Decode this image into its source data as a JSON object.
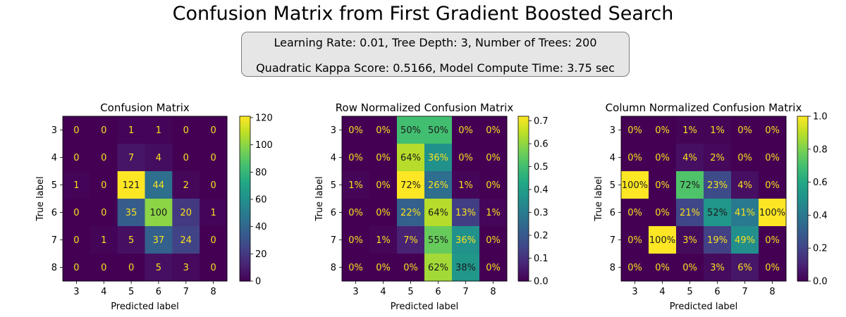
{
  "suptitle": "Confusion Matrix from First Gradient Boosted Search",
  "info_box": {
    "line1": "Learning Rate: 0.01, Tree Depth: 3, Number of Trees: 200",
    "line2": "Quadratic Kappa Score: 0.5166,  Model Compute Time: 3.75 sec"
  },
  "colors": {
    "colormap": "viridis",
    "text_on_dark": "#f9e01e",
    "text_on_light": "#1a1a1a",
    "info_box_bg": "#e6e6e6"
  },
  "chart_data": [
    {
      "type": "heatmap",
      "title": "Confusion Matrix",
      "xlabel": "Predicted label",
      "ylabel": "True label",
      "x": [
        "3",
        "4",
        "5",
        "6",
        "7",
        "8"
      ],
      "y": [
        "3",
        "4",
        "5",
        "6",
        "7",
        "8"
      ],
      "values": [
        [
          0,
          0,
          1,
          1,
          0,
          0
        ],
        [
          0,
          0,
          7,
          4,
          0,
          0
        ],
        [
          1,
          0,
          121,
          44,
          2,
          0
        ],
        [
          0,
          0,
          35,
          100,
          20,
          1
        ],
        [
          0,
          1,
          5,
          37,
          24,
          0
        ],
        [
          0,
          0,
          0,
          5,
          3,
          0
        ]
      ],
      "cell_labels": [
        [
          "0",
          "0",
          "1",
          "1",
          "0",
          "0"
        ],
        [
          "0",
          "0",
          "7",
          "4",
          "0",
          "0"
        ],
        [
          "1",
          "0",
          "121",
          "44",
          "2",
          "0"
        ],
        [
          "0",
          "0",
          "35",
          "100",
          "20",
          "1"
        ],
        [
          "0",
          "1",
          "5",
          "37",
          "24",
          "0"
        ],
        [
          "0",
          "0",
          "0",
          "5",
          "3",
          "0"
        ]
      ],
      "colorbar": {
        "range": [
          0,
          121
        ],
        "ticks": [
          "0",
          "20",
          "40",
          "60",
          "80",
          "100",
          "120"
        ],
        "tick_values": [
          0,
          20,
          40,
          60,
          80,
          100,
          120
        ]
      }
    },
    {
      "type": "heatmap",
      "title": "Row Normalized Confusion Matrix",
      "xlabel": "Predicted label",
      "ylabel": "True label",
      "x": [
        "3",
        "4",
        "5",
        "6",
        "7",
        "8"
      ],
      "y": [
        "3",
        "4",
        "5",
        "6",
        "7",
        "8"
      ],
      "values": [
        [
          0,
          0,
          0.5,
          0.5,
          0,
          0
        ],
        [
          0,
          0,
          0.64,
          0.36,
          0,
          0
        ],
        [
          0.01,
          0,
          0.72,
          0.26,
          0.01,
          0
        ],
        [
          0,
          0,
          0.22,
          0.64,
          0.13,
          0.01
        ],
        [
          0,
          0.01,
          0.07,
          0.55,
          0.36,
          0
        ],
        [
          0,
          0,
          0,
          0.62,
          0.38,
          0
        ]
      ],
      "cell_labels": [
        [
          "0%",
          "0%",
          "50%",
          "50%",
          "0%",
          "0%"
        ],
        [
          "0%",
          "0%",
          "64%",
          "36%",
          "0%",
          "0%"
        ],
        [
          "1%",
          "0%",
          "72%",
          "26%",
          "1%",
          "0%"
        ],
        [
          "0%",
          "0%",
          "22%",
          "64%",
          "13%",
          "1%"
        ],
        [
          "0%",
          "1%",
          "7%",
          "55%",
          "36%",
          "0%"
        ],
        [
          "0%",
          "0%",
          "0%",
          "62%",
          "38%",
          "0%"
        ]
      ],
      "colorbar": {
        "range": [
          0,
          0.72
        ],
        "ticks": [
          "0.0",
          "0.1",
          "0.2",
          "0.3",
          "0.4",
          "0.5",
          "0.6",
          "0.7"
        ],
        "tick_values": [
          0,
          0.1,
          0.2,
          0.3,
          0.4,
          0.5,
          0.6,
          0.7
        ]
      }
    },
    {
      "type": "heatmap",
      "title": "Column Normalized Confusion Matrix",
      "xlabel": "Predicted label",
      "ylabel": "True label",
      "x": [
        "3",
        "4",
        "5",
        "6",
        "7",
        "8"
      ],
      "y": [
        "3",
        "4",
        "5",
        "6",
        "7",
        "8"
      ],
      "values": [
        [
          0,
          0,
          0.01,
          0.01,
          0,
          0
        ],
        [
          0,
          0,
          0.04,
          0.02,
          0,
          0
        ],
        [
          1,
          0,
          0.72,
          0.23,
          0.04,
          0
        ],
        [
          0,
          0,
          0.21,
          0.52,
          0.41,
          1
        ],
        [
          0,
          1,
          0.03,
          0.19,
          0.49,
          0
        ],
        [
          0,
          0,
          0,
          0.03,
          0.06,
          0
        ]
      ],
      "cell_labels": [
        [
          "0%",
          "0%",
          "1%",
          "1%",
          "0%",
          "0%"
        ],
        [
          "0%",
          "0%",
          "4%",
          "2%",
          "0%",
          "0%"
        ],
        [
          "100%",
          "0%",
          "72%",
          "23%",
          "4%",
          "0%"
        ],
        [
          "0%",
          "0%",
          "21%",
          "52%",
          "41%",
          "100%"
        ],
        [
          "0%",
          "100%",
          "3%",
          "19%",
          "49%",
          "0%"
        ],
        [
          "0%",
          "0%",
          "0%",
          "3%",
          "6%",
          "0%"
        ]
      ],
      "colorbar": {
        "range": [
          0,
          1
        ],
        "ticks": [
          "0.0",
          "0.2",
          "0.4",
          "0.6",
          "0.8",
          "1.0"
        ],
        "tick_values": [
          0,
          0.2,
          0.4,
          0.6,
          0.8,
          1.0
        ]
      }
    }
  ]
}
